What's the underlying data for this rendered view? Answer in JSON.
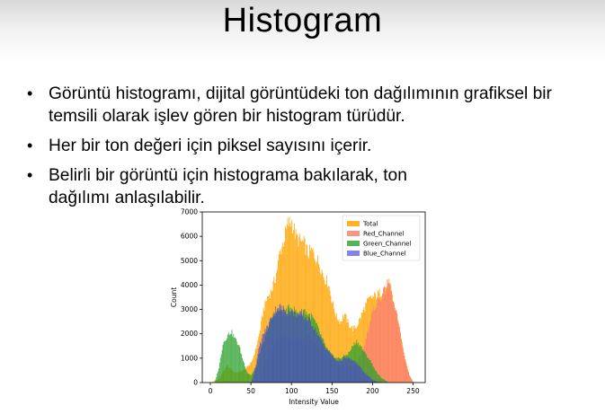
{
  "slide": {
    "title": "Histogram",
    "bullets": [
      "Görüntü histogramı, dijital görüntüdeki ton dağılımının grafiksel bir temsili olarak işlev gören bir histogram türüdür.",
      "Her bir ton değeri için piksel sayısını içerir.",
      "Belirli bir görüntü için histograma bakılarak, ton dağılımı anlaşılabilir."
    ]
  },
  "chart_data": {
    "type": "bar",
    "xlabel": "Intensity Value",
    "ylabel": "Count",
    "xlim": [
      -10,
      265
    ],
    "ylim": [
      0,
      7000
    ],
    "xticks": [
      0,
      50,
      100,
      150,
      200,
      250
    ],
    "yticks": [
      0,
      1000,
      2000,
      3000,
      4000,
      5000,
      6000,
      7000
    ],
    "legend_position": "top-right",
    "series": [
      {
        "name": "Total",
        "color": "#ffa500",
        "points": [
          [
            0,
            0
          ],
          [
            10,
            150
          ],
          [
            20,
            700
          ],
          [
            30,
            400
          ],
          [
            40,
            500
          ],
          [
            50,
            800
          ],
          [
            55,
            1300
          ],
          [
            60,
            2000
          ],
          [
            65,
            3000
          ],
          [
            70,
            3500
          ],
          [
            75,
            3800
          ],
          [
            80,
            4300
          ],
          [
            85,
            5300
          ],
          [
            90,
            5800
          ],
          [
            95,
            6500
          ],
          [
            100,
            6600
          ],
          [
            105,
            6000
          ],
          [
            110,
            5800
          ],
          [
            115,
            5700
          ],
          [
            120,
            5300
          ],
          [
            125,
            5400
          ],
          [
            130,
            5100
          ],
          [
            135,
            4800
          ],
          [
            140,
            4300
          ],
          [
            145,
            4100
          ],
          [
            150,
            3300
          ],
          [
            155,
            2700
          ],
          [
            160,
            2500
          ],
          [
            165,
            2800
          ],
          [
            170,
            2400
          ],
          [
            175,
            2200
          ],
          [
            180,
            2300
          ],
          [
            185,
            2700
          ],
          [
            190,
            3100
          ],
          [
            195,
            3400
          ],
          [
            200,
            3500
          ],
          [
            205,
            3600
          ],
          [
            210,
            3700
          ],
          [
            215,
            3900
          ],
          [
            220,
            4100
          ],
          [
            225,
            3300
          ],
          [
            230,
            2700
          ],
          [
            235,
            1800
          ],
          [
            240,
            900
          ],
          [
            245,
            300
          ],
          [
            250,
            0
          ]
        ]
      },
      {
        "name": "Red_Channel",
        "color": "#fa8072",
        "points": [
          [
            0,
            0
          ],
          [
            60,
            0
          ],
          [
            70,
            1200
          ],
          [
            80,
            1800
          ],
          [
            90,
            1900
          ],
          [
            100,
            1800
          ],
          [
            110,
            1800
          ],
          [
            120,
            1900
          ],
          [
            130,
            1600
          ],
          [
            140,
            1300
          ],
          [
            150,
            900
          ],
          [
            160,
            700
          ],
          [
            170,
            600
          ],
          [
            180,
            800
          ],
          [
            185,
            1100
          ],
          [
            190,
            1600
          ],
          [
            195,
            2300
          ],
          [
            200,
            2900
          ],
          [
            205,
            3300
          ],
          [
            210,
            3500
          ],
          [
            215,
            3800
          ],
          [
            220,
            4100
          ],
          [
            225,
            3300
          ],
          [
            230,
            2700
          ],
          [
            235,
            1800
          ],
          [
            240,
            900
          ],
          [
            245,
            300
          ],
          [
            250,
            0
          ]
        ]
      },
      {
        "name": "Green_Channel",
        "color": "#2ca02c",
        "points": [
          [
            0,
            0
          ],
          [
            5,
            0
          ],
          [
            10,
            600
          ],
          [
            15,
            1600
          ],
          [
            20,
            1900
          ],
          [
            25,
            2100
          ],
          [
            30,
            1800
          ],
          [
            35,
            1500
          ],
          [
            40,
            900
          ],
          [
            45,
            400
          ],
          [
            50,
            300
          ],
          [
            55,
            600
          ],
          [
            60,
            1200
          ],
          [
            65,
            1600
          ],
          [
            70,
            2200
          ],
          [
            75,
            2600
          ],
          [
            80,
            2900
          ],
          [
            85,
            3000
          ],
          [
            90,
            2900
          ],
          [
            95,
            3000
          ],
          [
            100,
            3100
          ],
          [
            105,
            2900
          ],
          [
            110,
            2800
          ],
          [
            115,
            3000
          ],
          [
            120,
            2800
          ],
          [
            125,
            2700
          ],
          [
            130,
            2400
          ],
          [
            135,
            2000
          ],
          [
            140,
            1600
          ],
          [
            145,
            1300
          ],
          [
            150,
            1100
          ],
          [
            155,
            1000
          ],
          [
            160,
            1000
          ],
          [
            165,
            1100
          ],
          [
            170,
            1200
          ],
          [
            175,
            1500
          ],
          [
            180,
            1700
          ],
          [
            185,
            1500
          ],
          [
            190,
            1200
          ],
          [
            195,
            1000
          ],
          [
            200,
            700
          ],
          [
            205,
            400
          ],
          [
            210,
            200
          ],
          [
            220,
            0
          ]
        ]
      },
      {
        "name": "Blue_Channel",
        "color": "#4040e0",
        "points": [
          [
            0,
            0
          ],
          [
            50,
            0
          ],
          [
            55,
            600
          ],
          [
            60,
            1500
          ],
          [
            65,
            2000
          ],
          [
            70,
            2300
          ],
          [
            75,
            2700
          ],
          [
            80,
            3000
          ],
          [
            85,
            3100
          ],
          [
            90,
            3000
          ],
          [
            95,
            2900
          ],
          [
            100,
            2900
          ],
          [
            105,
            2800
          ],
          [
            110,
            2800
          ],
          [
            115,
            2700
          ],
          [
            120,
            2600
          ],
          [
            125,
            2400
          ],
          [
            130,
            2100
          ],
          [
            135,
            1800
          ],
          [
            140,
            1500
          ],
          [
            145,
            1300
          ],
          [
            150,
            1100
          ],
          [
            155,
            900
          ],
          [
            160,
            900
          ],
          [
            165,
            1000
          ],
          [
            170,
            1000
          ],
          [
            175,
            900
          ],
          [
            180,
            800
          ],
          [
            185,
            600
          ],
          [
            190,
            400
          ],
          [
            200,
            100
          ],
          [
            210,
            0
          ]
        ]
      }
    ]
  }
}
